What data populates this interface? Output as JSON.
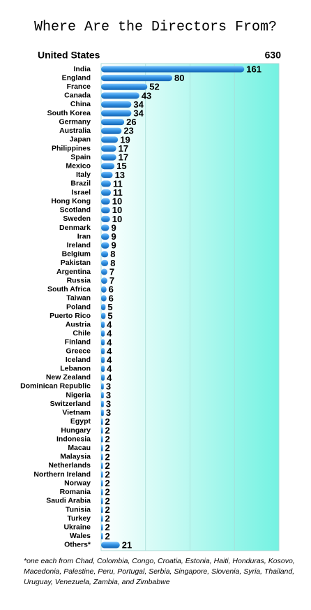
{
  "chart_data": {
    "type": "bar",
    "orientation": "horizontal",
    "title": "Where Are the Directors From?",
    "highlight": {
      "name": "United States",
      "value": 630
    },
    "categories": [
      "India",
      "England",
      "France",
      "Canada",
      "China",
      "South Korea",
      "Germany",
      "Australia",
      "Japan",
      "Philippines",
      "Spain",
      "Mexico",
      "Italy",
      "Brazil",
      "Israel",
      "Hong Kong",
      "Scotland",
      "Sweden",
      "Denmark",
      "Iran",
      "Ireland",
      "Belgium",
      "Pakistan",
      "Argentina",
      "Russia",
      "South Africa",
      "Taiwan",
      "Poland",
      "Puerto Rico",
      "Austria",
      "Chile",
      "Finland",
      "Greece",
      "Iceland",
      "Lebanon",
      "New Zealand",
      "Dominican Republic",
      "Nigeria",
      "Switzerland",
      "Vietnam",
      "Egypt",
      "Hungary",
      "Indonesia",
      "Macau",
      "Malaysia",
      "Netherlands",
      "Northern Ireland",
      "Norway",
      "Romania",
      "Saudi Arabia",
      "Tunisia",
      "Turkey",
      "Ukraine",
      "Wales",
      "Others*"
    ],
    "values": [
      161,
      80,
      52,
      43,
      34,
      34,
      26,
      23,
      19,
      17,
      17,
      15,
      13,
      11,
      11,
      10,
      10,
      10,
      9,
      9,
      9,
      8,
      8,
      7,
      7,
      6,
      6,
      5,
      5,
      4,
      4,
      4,
      4,
      4,
      4,
      4,
      3,
      3,
      3,
      3,
      2,
      2,
      2,
      2,
      2,
      2,
      2,
      2,
      2,
      2,
      2,
      2,
      2,
      2,
      21
    ],
    "color": "#2f8fe0",
    "xlim": [
      0,
      200
    ],
    "xticks": [
      0,
      50,
      100,
      150,
      200
    ],
    "grid": true,
    "footnote": "*one each from Chad, Colombia, Congo, Croatia, Estonia, Haiti, Honduras, Kosovo, Macedonia, Palestine, Peru, Portugal, Serbia, Singapore, Slovenia, Syria, Thailand, Uruguay, Venezuela, Zambia, and Zimbabwe"
  }
}
